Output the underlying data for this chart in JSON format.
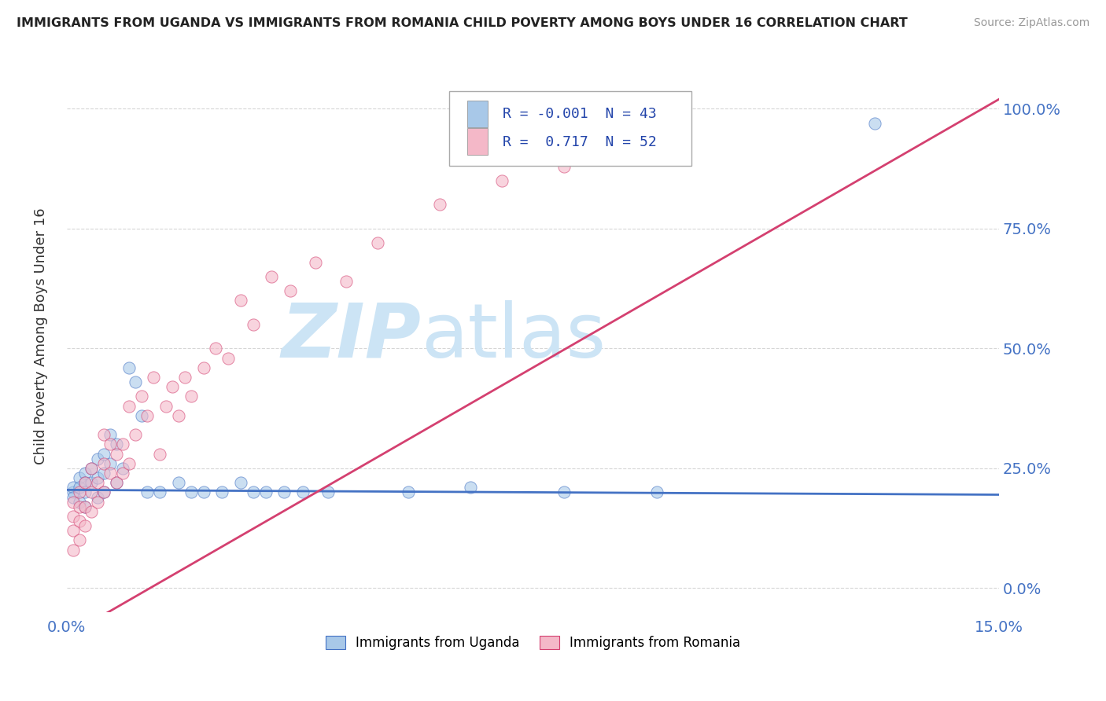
{
  "title": "IMMIGRANTS FROM UGANDA VS IMMIGRANTS FROM ROMANIA CHILD POVERTY AMONG BOYS UNDER 16 CORRELATION CHART",
  "source": "Source: ZipAtlas.com",
  "ylabel": "Child Poverty Among Boys Under 16",
  "xlim": [
    0.0,
    0.15
  ],
  "ylim": [
    -0.05,
    1.1
  ],
  "yticks": [
    0.0,
    0.25,
    0.5,
    0.75,
    1.0
  ],
  "ytick_labels": [
    "0.0%",
    "25.0%",
    "50.0%",
    "75.0%",
    "100.0%"
  ],
  "xticks": [
    0.0,
    0.15
  ],
  "xtick_labels": [
    "0.0%",
    "15.0%"
  ],
  "legend_r_uganda": "-0.001",
  "legend_n_uganda": "43",
  "legend_r_romania": "0.717",
  "legend_n_romania": "52",
  "color_uganda": "#a8c8e8",
  "color_romania": "#f4b8c8",
  "line_color_uganda": "#4472c4",
  "line_color_romania": "#d44070",
  "watermark_zip": "ZIP",
  "watermark_atlas": "atlas",
  "watermark_color": "#cce4f5",
  "background_color": "#ffffff",
  "grid_color": "#cccccc",
  "uganda_x": [
    0.001,
    0.001,
    0.001,
    0.002,
    0.002,
    0.002,
    0.003,
    0.003,
    0.003,
    0.003,
    0.004,
    0.004,
    0.005,
    0.005,
    0.005,
    0.006,
    0.006,
    0.006,
    0.007,
    0.007,
    0.008,
    0.008,
    0.009,
    0.01,
    0.011,
    0.012,
    0.013,
    0.015,
    0.018,
    0.02,
    0.022,
    0.025,
    0.028,
    0.03,
    0.032,
    0.035,
    0.038,
    0.042,
    0.055,
    0.065,
    0.08,
    0.095,
    0.13
  ],
  "uganda_y": [
    0.2,
    0.21,
    0.19,
    0.23,
    0.21,
    0.18,
    0.24,
    0.22,
    0.2,
    0.17,
    0.25,
    0.22,
    0.27,
    0.23,
    0.19,
    0.28,
    0.24,
    0.2,
    0.32,
    0.26,
    0.3,
    0.22,
    0.25,
    0.46,
    0.43,
    0.36,
    0.2,
    0.2,
    0.22,
    0.2,
    0.2,
    0.2,
    0.22,
    0.2,
    0.2,
    0.2,
    0.2,
    0.2,
    0.2,
    0.21,
    0.2,
    0.2,
    0.97
  ],
  "romania_x": [
    0.001,
    0.001,
    0.001,
    0.001,
    0.002,
    0.002,
    0.002,
    0.002,
    0.003,
    0.003,
    0.003,
    0.004,
    0.004,
    0.004,
    0.005,
    0.005,
    0.006,
    0.006,
    0.006,
    0.007,
    0.007,
    0.008,
    0.008,
    0.009,
    0.009,
    0.01,
    0.01,
    0.011,
    0.012,
    0.013,
    0.014,
    0.015,
    0.016,
    0.017,
    0.018,
    0.019,
    0.02,
    0.022,
    0.024,
    0.026,
    0.028,
    0.03,
    0.033,
    0.036,
    0.04,
    0.045,
    0.05,
    0.06,
    0.07,
    0.08,
    0.085,
    0.09
  ],
  "romania_y": [
    0.08,
    0.12,
    0.15,
    0.18,
    0.1,
    0.14,
    0.17,
    0.2,
    0.13,
    0.17,
    0.22,
    0.16,
    0.2,
    0.25,
    0.18,
    0.22,
    0.2,
    0.26,
    0.32,
    0.24,
    0.3,
    0.22,
    0.28,
    0.24,
    0.3,
    0.26,
    0.38,
    0.32,
    0.4,
    0.36,
    0.44,
    0.28,
    0.38,
    0.42,
    0.36,
    0.44,
    0.4,
    0.46,
    0.5,
    0.48,
    0.6,
    0.55,
    0.65,
    0.62,
    0.68,
    0.64,
    0.72,
    0.8,
    0.85,
    0.88,
    0.92,
    0.97
  ],
  "uganda_line": [
    0.0,
    0.15,
    0.205,
    0.195
  ],
  "romania_line": [
    0.0,
    0.15,
    -0.1,
    1.02
  ]
}
